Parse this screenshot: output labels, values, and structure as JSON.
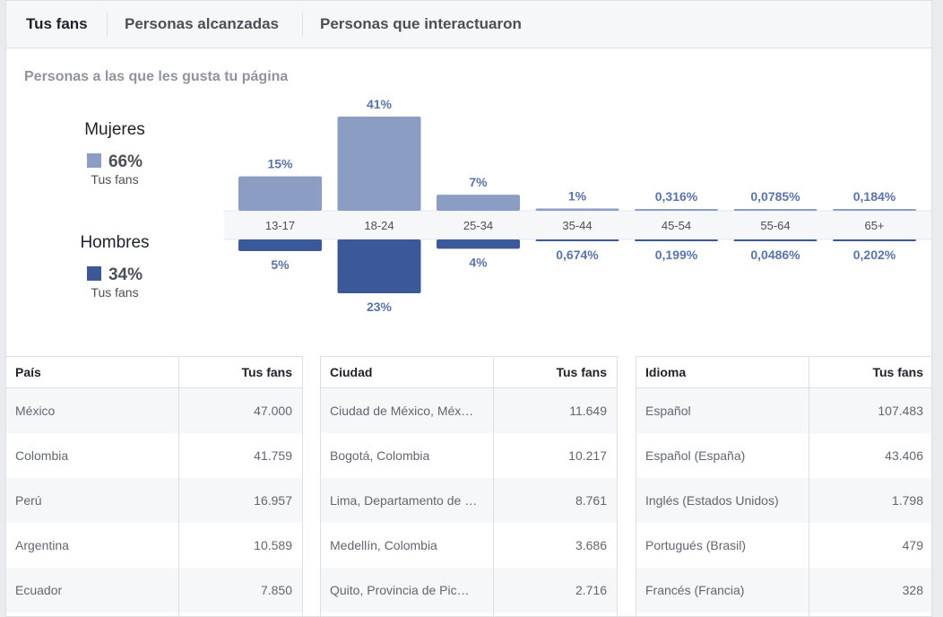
{
  "tabs": [
    "Tus fans",
    "Personas alcanzadas",
    "Personas que interactuaron"
  ],
  "subtitle": "Personas a las que les gusta tu página",
  "gender": {
    "women": {
      "title": "Mujeres",
      "percent": "66%",
      "sub": "Tus fans",
      "color": "#8b9dc3"
    },
    "men": {
      "title": "Hombres",
      "percent": "34%",
      "sub": "Tus fans",
      "color": "#3b5998"
    }
  },
  "chart_data": {
    "type": "bar",
    "categories": [
      "13-17",
      "18-24",
      "25-34",
      "35-44",
      "45-54",
      "55-64",
      "65+"
    ],
    "series": [
      {
        "name": "Mujeres",
        "values": [
          15,
          41,
          7,
          1,
          0.316,
          0.0785,
          0.184
        ],
        "labels": [
          "15%",
          "41%",
          "7%",
          "1%",
          "0,316%",
          "0,0785%",
          "0,184%"
        ],
        "color": "#8b9dc3"
      },
      {
        "name": "Hombres",
        "values": [
          5,
          23,
          4,
          0.674,
          0.199,
          0.0486,
          0.202
        ],
        "labels": [
          "5%",
          "23%",
          "4%",
          "0,674%",
          "0,199%",
          "0,0486%",
          "0,202%"
        ],
        "color": "#3b5998"
      }
    ]
  },
  "tables": [
    {
      "header": [
        "País",
        "Tus fans"
      ],
      "rows": [
        [
          "México",
          "47.000"
        ],
        [
          "Colombia",
          "41.759"
        ],
        [
          "Perú",
          "16.957"
        ],
        [
          "Argentina",
          "10.589"
        ],
        [
          "Ecuador",
          "7.850"
        ]
      ]
    },
    {
      "header": [
        "Ciudad",
        "Tus fans"
      ],
      "rows": [
        [
          "Ciudad de México, Méx…",
          "11.649"
        ],
        [
          "Bogotá, Colombia",
          "10.217"
        ],
        [
          "Lima, Departamento de …",
          "8.761"
        ],
        [
          "Medellín, Colombia",
          "3.686"
        ],
        [
          "Quito, Provincia de Pic…",
          "2.716"
        ]
      ]
    },
    {
      "header": [
        "Idioma",
        "Tus fans"
      ],
      "rows": [
        [
          "Español",
          "107.483"
        ],
        [
          "Español (España)",
          "43.406"
        ],
        [
          "Inglés (Estados Unidos)",
          "1.798"
        ],
        [
          "Portugués (Brasil)",
          "479"
        ],
        [
          "Francés (Francia)",
          "328"
        ]
      ]
    }
  ]
}
